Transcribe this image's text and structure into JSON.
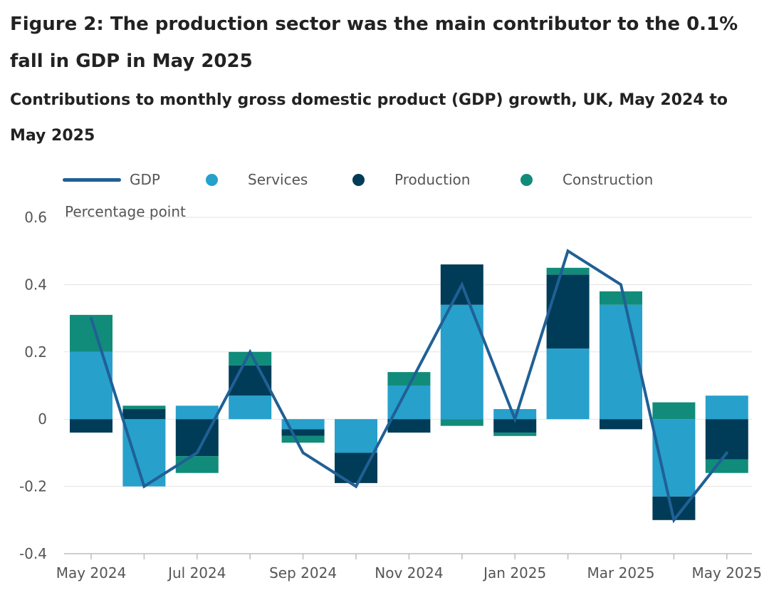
{
  "title": "Figure 2: The production sector was the main contributor to the 0.1% fall in GDP in May 2025",
  "subtitle": "Contributions to monthly gross domestic product (GDP) growth, UK, May 2024 to May 2025",
  "legend": {
    "gdp": "GDP",
    "services": "Services",
    "production": "Production",
    "construction": "Construction"
  },
  "chart_data": {
    "type": "bar",
    "stacked": true,
    "ylabel": "Percentage point",
    "ylim": [
      -0.4,
      0.6
    ],
    "yticks": [
      -0.4,
      -0.2,
      0,
      0.2,
      0.4,
      0.6
    ],
    "ytick_labels": [
      "-0.4",
      "-0.2",
      "0",
      "0.2",
      "0.4",
      "0.6"
    ],
    "grid": true,
    "legend_position": "top",
    "categories": [
      "May 2024",
      "Jun 2024",
      "Jul 2024",
      "Aug 2024",
      "Sep 2024",
      "Oct 2024",
      "Nov 2024",
      "Dec 2024",
      "Jan 2025",
      "Feb 2025",
      "Mar 2025",
      "Apr 2025",
      "May 2025"
    ],
    "xtick_labels": [
      "May 2024",
      "",
      "Jul 2024",
      "",
      "Sep 2024",
      "",
      "Nov 2024",
      "",
      "Jan 2025",
      "",
      "Mar 2025",
      "",
      "May 2025"
    ],
    "series": [
      {
        "name": "Services",
        "type": "bar",
        "color": "#27a0cc",
        "values": [
          0.2,
          -0.2,
          0.04,
          0.07,
          -0.03,
          -0.1,
          0.1,
          0.34,
          0.03,
          0.21,
          0.34,
          -0.23,
          0.07
        ]
      },
      {
        "name": "Production",
        "type": "bar",
        "color": "#003c57",
        "values": [
          -0.04,
          0.03,
          -0.11,
          0.09,
          -0.02,
          -0.09,
          -0.04,
          0.12,
          -0.04,
          0.22,
          -0.03,
          -0.07,
          -0.12
        ]
      },
      {
        "name": "Construction",
        "type": "bar",
        "color": "#118c7b",
        "values": [
          0.11,
          0.01,
          -0.05,
          0.04,
          -0.02,
          0.0,
          0.04,
          -0.02,
          -0.01,
          0.02,
          0.04,
          0.05,
          -0.04
        ]
      },
      {
        "name": "GDP",
        "type": "line",
        "color": "#206095",
        "values": [
          0.3,
          -0.2,
          -0.1,
          0.2,
          -0.1,
          -0.2,
          0.1,
          0.4,
          0.0,
          0.5,
          0.4,
          -0.3,
          -0.1
        ]
      }
    ]
  }
}
